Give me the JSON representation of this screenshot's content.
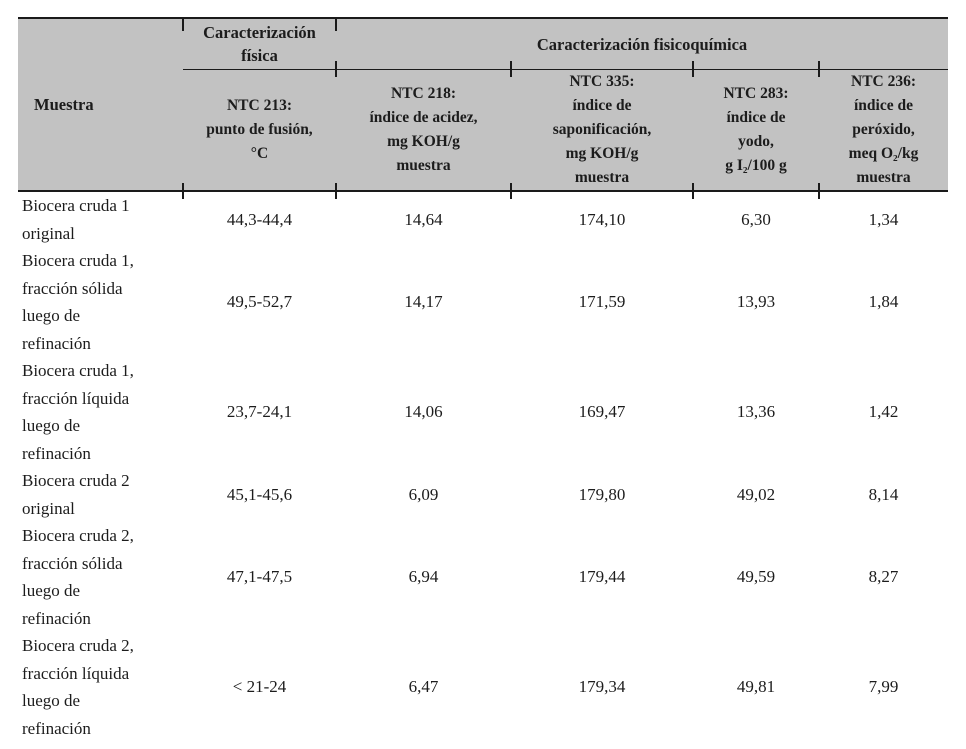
{
  "table": {
    "title_hidden": "",
    "muestra_header": "Muestra",
    "group_headers": {
      "physical": "Caracterización\nfísica",
      "physicochemical": "Caracterización fisicoquímica"
    },
    "columns": [
      {
        "id": "ntc-213",
        "label": "NTC 213:\npunto de fusión,\n°C"
      },
      {
        "id": "ntc-218",
        "label": "NTC 218:\níndice de acidez,\nmg KOH/g\nmuestra"
      },
      {
        "id": "ntc-335",
        "label": "NTC 335:\níndice de\nsaponificación,\nmg KOH/g\nmuestra"
      },
      {
        "id": "ntc-283",
        "label": "NTC 283:\níndice de\nyodo,\ng I₂/100 g"
      },
      {
        "id": "ntc-236",
        "label": "NTC 236:\níndice de\nperóxido,\nmeq O₂/kg\nmuestra"
      }
    ],
    "rows": [
      {
        "sample": "Biocera cruda 1\noriginal",
        "values": [
          "44,3-44,4",
          "14,64",
          "174,10",
          "6,30",
          "1,34"
        ]
      },
      {
        "sample": "Biocera cruda 1,\nfracción sólida\nluego de\nrefinación",
        "values": [
          "49,5-52,7",
          "14,17",
          "171,59",
          "13,93",
          "1,84"
        ]
      },
      {
        "sample": "Biocera cruda 1,\nfracción líquida\nluego de\nrefinación",
        "values": [
          "23,7-24,1",
          "14,06",
          "169,47",
          "13,36",
          "1,42"
        ]
      },
      {
        "sample": "Biocera cruda 2\noriginal",
        "values": [
          "45,1-45,6",
          "6,09",
          "179,80",
          "49,02",
          "8,14"
        ]
      },
      {
        "sample": "Biocera cruda 2,\nfracción sólida\nluego de\nrefinación",
        "values": [
          "47,1-47,5",
          "6,94",
          "179,44",
          "49,59",
          "8,27"
        ]
      },
      {
        "sample": "Biocera cruda 2,\nfracción líquida\nluego de\nrefinación",
        "values": [
          "< 21-24",
          "6,47",
          "179,34",
          "49,81",
          "7,99"
        ]
      }
    ],
    "colors": {
      "header_background": "#c2c2c2",
      "rule": "#1a1a1a",
      "text": "#1c1c1c"
    }
  }
}
